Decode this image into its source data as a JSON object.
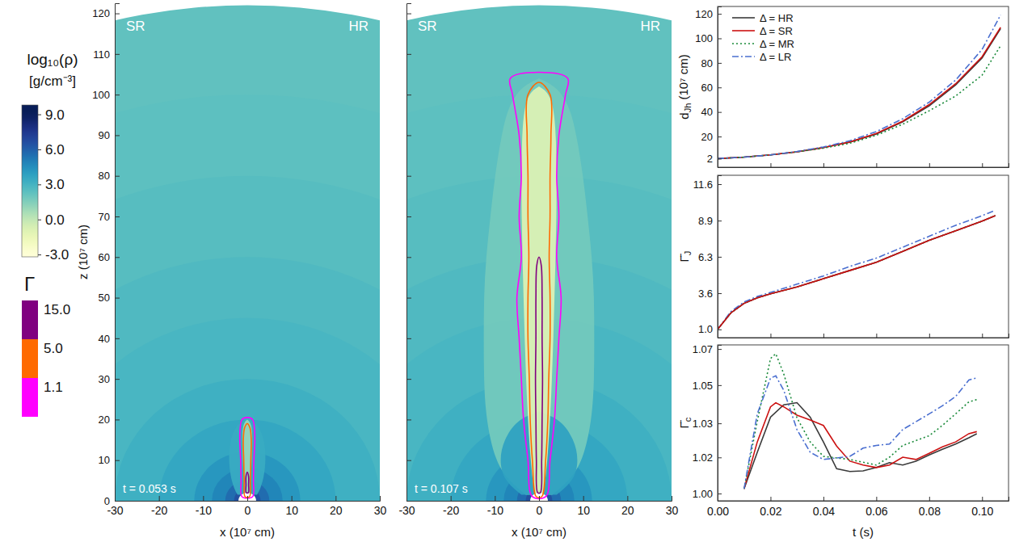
{
  "chart_data": [
    {
      "type": "colorbar",
      "title": "log₁₀(ρ)",
      "subtitle": "[g/cm⁻³]",
      "ylim": [
        -3.2,
        9.8
      ],
      "yticks": [
        {
          "value": 9,
          "label": "9.0"
        },
        {
          "value": 6,
          "label": "6.0"
        },
        {
          "value": 3,
          "label": "3.0"
        },
        {
          "value": 0,
          "label": "0.0"
        },
        {
          "value": -3,
          "label": "-3.0"
        }
      ]
    },
    {
      "type": "contour_legend",
      "title": "Γ",
      "levels": [
        {
          "value": 15,
          "label": "15.0"
        },
        {
          "value": 5,
          "label": "5.0"
        },
        1.1
      ],
      "colors": [
        "#800080",
        "#ff6a00",
        "#ff00ff"
      ]
    },
    {
      "type": "density_map",
      "annotations": [
        "SR",
        "HR",
        "t = 0.053 s"
      ],
      "xlabel": "x (10⁷ cm)",
      "ylabel": "z (10⁷ cm)",
      "xlim": [
        -30,
        30
      ],
      "ylim": [
        0,
        122.5
      ],
      "xticks": [
        -30,
        -20,
        -10,
        0,
        10,
        20,
        30
      ],
      "yticks": [
        0,
        10,
        20,
        30,
        40,
        50,
        60,
        70,
        80,
        90,
        100,
        110,
        120
      ],
      "ambient": {
        "r": [
          3,
          5,
          8,
          12,
          20,
          30,
          45,
          60,
          80,
          100,
          122
        ],
        "log_rho": [
          6.5,
          5.6,
          4.8,
          4.2,
          3.6,
          3.2,
          2.9,
          2.7,
          2.5,
          2.35,
          2.25
        ]
      },
      "inner_radius": 2,
      "layers": [
        {
          "log_rho": 3.4,
          "z": [
            1.5,
            3,
            6,
            10,
            14,
            17,
            19,
            20.5
          ],
          "half_width": [
            2.2,
            3.0,
            3.8,
            4.2,
            4.0,
            3.2,
            2.0,
            0
          ]
        },
        {
          "log_rho": 1.0,
          "z": [
            1.5,
            5,
            10,
            15,
            19,
            20
          ],
          "half_width": [
            0.6,
            0.8,
            1.0,
            1.2,
            1.0,
            0
          ]
        }
      ],
      "contours": [
        {
          "level": 1.1,
          "z": [
            1,
            5,
            10,
            15,
            18,
            20,
            20.5
          ],
          "half_width": [
            1.2,
            1.4,
            1.5,
            1.7,
            1.6,
            1.2,
            0
          ]
        },
        {
          "level": 5,
          "z": [
            1,
            5,
            10,
            15,
            18,
            19
          ],
          "half_width": [
            0.5,
            0.7,
            0.8,
            0.9,
            0.6,
            0
          ]
        },
        {
          "level": 15,
          "z": [
            2,
            4,
            6,
            7
          ],
          "half_width": [
            0.25,
            0.3,
            0.3,
            0
          ]
        }
      ]
    },
    {
      "type": "density_map",
      "annotations": [
        "SR",
        "HR",
        "t = 0.107 s"
      ],
      "xlabel": "x (10⁷ cm)",
      "tick_labels": "x",
      "xlim": [
        -30,
        30
      ],
      "ylim": [
        0,
        122.5
      ],
      "xticks": [
        -30,
        -20,
        -10,
        0,
        10,
        20,
        30
      ],
      "yticks": [
        0,
        10,
        20,
        30,
        40,
        50,
        60,
        70,
        80,
        90,
        100,
        110,
        120
      ],
      "ambient": {
        "r": [
          3,
          5,
          8,
          12,
          20,
          30,
          45,
          60,
          80,
          100,
          122
        ],
        "log_rho": [
          6.5,
          5.6,
          4.8,
          4.2,
          3.6,
          3.2,
          2.9,
          2.7,
          2.5,
          2.35,
          2.25
        ]
      },
      "inner_radius": 2,
      "layers": [
        {
          "log_rho": 1.8,
          "z": [
            1.5,
            5,
            10,
            20,
            30,
            40,
            50,
            60,
            70,
            80,
            90,
            97,
            102,
            104
          ],
          "half_width": [
            3,
            7,
            10,
            12,
            12.5,
            12.5,
            12.5,
            12,
            11,
            10,
            8.5,
            7,
            4,
            0
          ]
        },
        {
          "log_rho": 3.8,
          "z": [
            1.5,
            5,
            10,
            15,
            20,
            22
          ],
          "half_width": [
            4,
            8,
            9,
            8,
            5,
            0
          ]
        },
        {
          "log_rho": -0.8,
          "z": [
            1.5,
            10,
            30,
            50,
            70,
            90,
            100,
            102
          ],
          "half_width": [
            1,
            2,
            3,
            3.5,
            4,
            4,
            3,
            0
          ]
        }
      ],
      "contours": [
        {
          "level": 1.1,
          "z": [
            1,
            10,
            20,
            30,
            40,
            50,
            60,
            70,
            80,
            90,
            100,
            104,
            105.5
          ],
          "half_width": [
            1.5,
            2.5,
            3.5,
            4,
            4.5,
            5,
            4,
            4.5,
            4,
            4.5,
            6,
            6.5,
            0
          ]
        },
        {
          "level": 5,
          "z": [
            1,
            10,
            20,
            30,
            40,
            50,
            60,
            70,
            80,
            90,
            100,
            103
          ],
          "half_width": [
            0.6,
            1.5,
            2,
            2.2,
            2.5,
            2.5,
            2.3,
            2.5,
            2.5,
            2.7,
            2.5,
            0
          ]
        },
        {
          "level": 15,
          "z": [
            2,
            10,
            20,
            30,
            40,
            50,
            58,
            60
          ],
          "half_width": [
            0.3,
            0.6,
            0.7,
            0.8,
            0.7,
            0.7,
            0.5,
            0
          ]
        }
      ]
    },
    {
      "type": "line",
      "ylabel": {
        "text": "d",
        "sub": "Jh",
        "unit": " (10⁷ cm)"
      },
      "tick_labels": "y",
      "legend": "upper left",
      "xlim": [
        0,
        0.11
      ],
      "ylim": [
        -5,
        126
      ],
      "xticks": [
        0,
        0.02,
        0.04,
        0.06,
        0.08,
        0.1
      ],
      "yticks": [
        2,
        20,
        40,
        60,
        80,
        100,
        120
      ],
      "x": [
        0,
        0.01,
        0.02,
        0.03,
        0.04,
        0.05,
        0.06,
        0.07,
        0.08,
        0.09,
        0.1,
        0.107
      ],
      "series": [
        {
          "name": "Δ = HR",
          "color": "#3a3a3a",
          "line_style": "solid",
          "values": [
            2,
            3.2,
            5,
            7.5,
            11,
            15.5,
            22,
            32,
            45,
            62,
            84,
            108
          ]
        },
        {
          "name": "Δ = SR",
          "color": "#cc1111",
          "line_style": "solid",
          "values": [
            2,
            3.2,
            5,
            7.5,
            11,
            15.5,
            22.5,
            32.5,
            46,
            63,
            85,
            109
          ]
        },
        {
          "name": "Δ = MR",
          "color": "#1a8a3a",
          "line_style": "dotted",
          "values": [
            2,
            3.2,
            5,
            7.5,
            10.5,
            14.5,
            21,
            30,
            41,
            53,
            70,
            94
          ]
        },
        {
          "name": "Δ = LR",
          "color": "#4a6fd0",
          "line_style": "dashdot",
          "values": [
            2,
            3.2,
            5,
            7.8,
            11.5,
            16.5,
            24,
            34.5,
            48,
            66,
            91,
            119
          ]
        }
      ]
    },
    {
      "type": "line",
      "ylabel": {
        "text": "Γ̄",
        "sub": "J"
      },
      "tick_labels": "y",
      "xlim": [
        0,
        0.11
      ],
      "ylim": [
        0.4,
        12.25
      ],
      "xticks": [
        0,
        0.02,
        0.04,
        0.06,
        0.08,
        0.1
      ],
      "yticks": [
        {
          "value": 1,
          "label": "1.0"
        },
        {
          "value": 3.64,
          "label": "3.6"
        },
        6.3,
        {
          "value": 8.94,
          "label": "8.9"
        },
        11.6
      ],
      "x": [
        0,
        0.005,
        0.01,
        0.015,
        0.02,
        0.03,
        0.04,
        0.05,
        0.06,
        0.07,
        0.08,
        0.09,
        0.1,
        0.105
      ],
      "series": [
        {
          "color": "#1a8a3a",
          "line_style": "dotted",
          "values": [
            1.0,
            2.2,
            2.9,
            3.3,
            3.6,
            4.1,
            4.7,
            5.3,
            5.9,
            6.7,
            7.5,
            8.2,
            8.9,
            9.3
          ]
        },
        {
          "color": "#4a6fd0",
          "line_style": "dashdot",
          "values": [
            1.0,
            2.3,
            3.0,
            3.4,
            3.7,
            4.3,
            4.9,
            5.6,
            6.2,
            7.0,
            7.8,
            8.6,
            9.3,
            9.7
          ]
        },
        {
          "color": "#3a3a3a",
          "line_style": "solid",
          "values": [
            1.0,
            2.2,
            2.9,
            3.3,
            3.6,
            4.1,
            4.7,
            5.3,
            5.9,
            6.7,
            7.5,
            8.2,
            8.9,
            9.3
          ]
        },
        {
          "color": "#cc1111",
          "line_style": "solid",
          "values": [
            1.0,
            2.2,
            2.9,
            3.3,
            3.6,
            4.1,
            4.7,
            5.3,
            5.9,
            6.7,
            7.5,
            8.2,
            8.9,
            9.3
          ]
        }
      ]
    },
    {
      "type": "line",
      "ylabel": {
        "text": "Γ̄",
        "sub": "c"
      },
      "xlabel": "t (s)",
      "xlim": [
        0,
        0.11
      ],
      "ylim": [
        0.9965,
        1.072
      ],
      "xticks": [
        {
          "value": 0,
          "label": "0.00"
        },
        0.02,
        0.04,
        0.06,
        0.08,
        {
          "value": 0.1,
          "label": "0.10"
        }
      ],
      "yticks": [
        {
          "value": 1,
          "label": "1.00"
        },
        {
          "value": 1.0175,
          "label": "1.02"
        },
        {
          "value": 1.034,
          "label": "1.03"
        },
        {
          "value": 1.0525,
          "label": "1.05"
        },
        1.07
      ],
      "series": [
        {
          "color": "#3a3a3a",
          "line_style": "solid",
          "x": [
            0.01,
            0.015,
            0.02,
            0.025,
            0.03,
            0.035,
            0.04,
            0.045,
            0.05,
            0.055,
            0.06,
            0.065,
            0.07,
            0.075,
            0.08,
            0.085,
            0.09,
            0.095,
            0.098
          ],
          "values": [
            1.0023,
            1.02,
            1.037,
            1.043,
            1.044,
            1.037,
            1.025,
            1.012,
            1.0107,
            1.011,
            1.0126,
            1.015,
            1.0138,
            1.0157,
            1.0187,
            1.0214,
            1.024,
            1.027,
            1.029
          ]
        },
        {
          "color": "#cc1111",
          "line_style": "solid",
          "x": [
            0.01,
            0.015,
            0.02,
            0.022,
            0.025,
            0.03,
            0.035,
            0.04,
            0.045,
            0.05,
            0.055,
            0.06,
            0.065,
            0.07,
            0.075,
            0.08,
            0.085,
            0.09,
            0.095,
            0.098
          ],
          "values": [
            1.0023,
            1.025,
            1.042,
            1.044,
            1.042,
            1.038,
            1.0356,
            1.033,
            1.023,
            1.0157,
            1.0138,
            1.0126,
            1.0138,
            1.0176,
            1.0165,
            1.0195,
            1.0226,
            1.025,
            1.029,
            1.03
          ]
        },
        {
          "color": "#1a8a3a",
          "line_style": "dotted",
          "x": [
            0.01,
            0.015,
            0.02,
            0.022,
            0.025,
            0.03,
            0.035,
            0.04,
            0.05,
            0.06,
            0.065,
            0.07,
            0.08,
            0.085,
            0.09,
            0.095,
            0.098
          ],
          "values": [
            1.0023,
            1.035,
            1.0654,
            1.0677,
            1.058,
            1.0367,
            1.025,
            1.018,
            1.0165,
            1.0138,
            1.0176,
            1.0233,
            1.028,
            1.033,
            1.0386,
            1.0444,
            1.0455
          ]
        },
        {
          "color": "#4a6fd0",
          "line_style": "dashdot",
          "x": [
            0.01,
            0.015,
            0.02,
            0.022,
            0.025,
            0.03,
            0.035,
            0.04,
            0.05,
            0.055,
            0.06,
            0.065,
            0.07,
            0.075,
            0.08,
            0.085,
            0.09,
            0.095,
            0.098
          ],
          "values": [
            1.0023,
            1.0386,
            1.0559,
            1.057,
            1.05,
            1.031,
            1.02,
            1.0165,
            1.018,
            1.022,
            1.0233,
            1.024,
            1.031,
            1.0348,
            1.0386,
            1.0425,
            1.047,
            1.055,
            1.056
          ]
        }
      ]
    }
  ]
}
